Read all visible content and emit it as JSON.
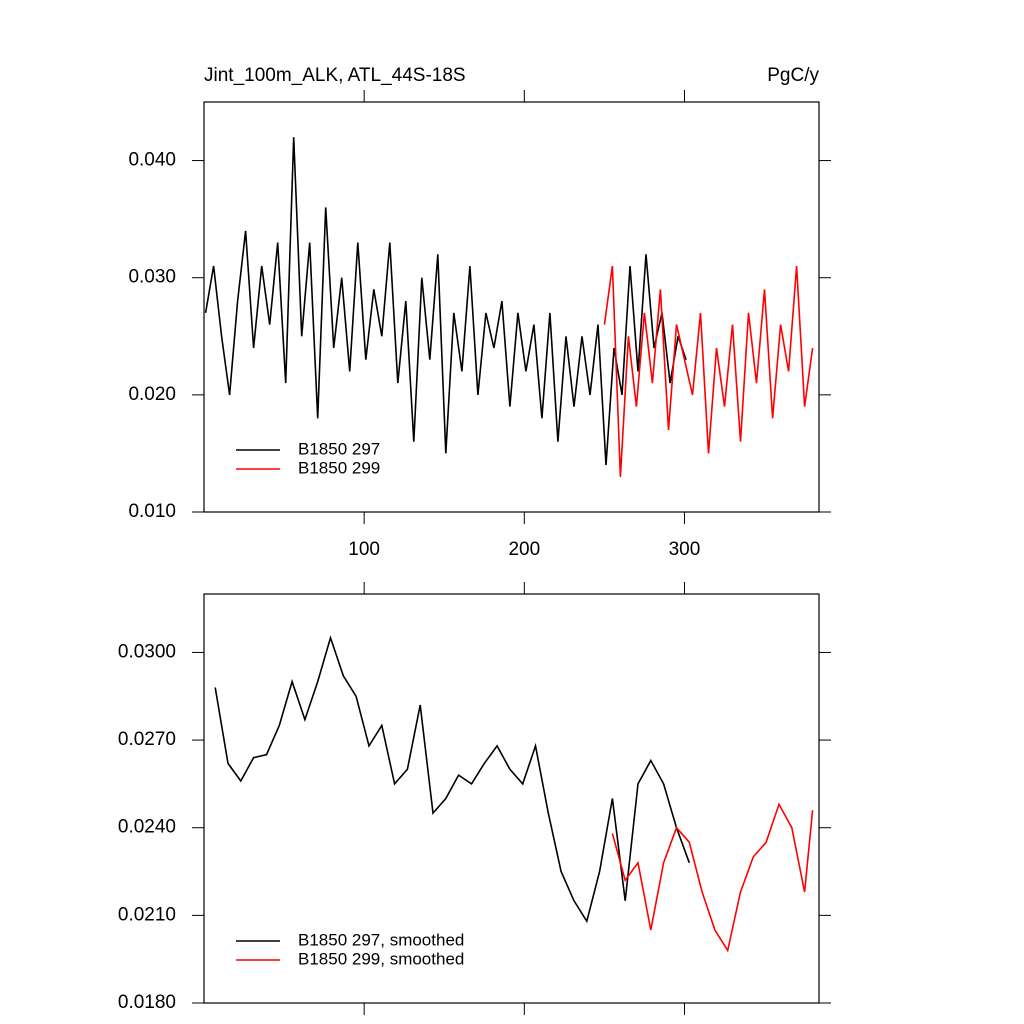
{
  "chart_data": [
    {
      "type": "line",
      "title": "Jint_100m_ALK, ATL_44S-18S",
      "subtitle": "PgC/y",
      "xlim": [
        0,
        384
      ],
      "xticks": [
        100,
        200,
        300
      ],
      "xtick_labels": true,
      "ylim": [
        0.01,
        0.045
      ],
      "yticks": [
        {
          "value": 0.01,
          "label": "0.010"
        },
        {
          "value": 0.02,
          "label": "0.020"
        },
        {
          "value": 0.03,
          "label": "0.030"
        },
        {
          "value": 0.04,
          "label": "0.040"
        }
      ],
      "legend": "lower left",
      "series": [
        {
          "name": "B1850 297",
          "color": "#000000",
          "x": [
            1,
            6,
            11,
            16,
            21,
            26,
            31,
            36,
            41,
            46,
            51,
            56,
            61,
            66,
            71,
            76,
            81,
            86,
            91,
            96,
            101,
            106,
            111,
            116,
            121,
            126,
            131,
            136,
            141,
            146,
            151,
            156,
            161,
            166,
            171,
            176,
            181,
            186,
            191,
            196,
            201,
            206,
            211,
            216,
            221,
            226,
            231,
            236,
            241,
            246,
            251,
            256,
            261,
            266,
            271,
            276,
            281,
            286,
            291,
            296,
            301
          ],
          "values": [
            0.027,
            0.031,
            0.025,
            0.02,
            0.028,
            0.034,
            0.024,
            0.031,
            0.026,
            0.033,
            0.021,
            0.042,
            0.025,
            0.033,
            0.018,
            0.036,
            0.024,
            0.03,
            0.022,
            0.033,
            0.023,
            0.029,
            0.025,
            0.033,
            0.021,
            0.028,
            0.016,
            0.03,
            0.023,
            0.032,
            0.015,
            0.027,
            0.022,
            0.031,
            0.02,
            0.027,
            0.024,
            0.028,
            0.019,
            0.027,
            0.022,
            0.026,
            0.018,
            0.027,
            0.016,
            0.025,
            0.019,
            0.025,
            0.02,
            0.026,
            0.014,
            0.024,
            0.02,
            0.031,
            0.022,
            0.032,
            0.024,
            0.027,
            0.021,
            0.025,
            0.023
          ]
        },
        {
          "name": "B1850 299",
          "color": "#ff0000",
          "x": [
            250,
            255,
            260,
            265,
            270,
            275,
            280,
            285,
            290,
            295,
            300,
            305,
            310,
            315,
            320,
            325,
            330,
            335,
            340,
            345,
            350,
            355,
            360,
            365,
            370,
            375,
            380
          ],
          "values": [
            0.026,
            0.031,
            0.013,
            0.025,
            0.019,
            0.027,
            0.021,
            0.029,
            0.017,
            0.026,
            0.023,
            0.02,
            0.027,
            0.015,
            0.024,
            0.019,
            0.026,
            0.016,
            0.027,
            0.021,
            0.029,
            0.018,
            0.026,
            0.022,
            0.031,
            0.019,
            0.024
          ]
        }
      ]
    },
    {
      "type": "line",
      "xlim": [
        0,
        384
      ],
      "xticks": [
        100,
        200,
        300
      ],
      "xtick_labels": false,
      "ylim": [
        0.018,
        0.032
      ],
      "yticks": [
        {
          "value": 0.018,
          "label": "0.0180"
        },
        {
          "value": 0.021,
          "label": "0.0210"
        },
        {
          "value": 0.024,
          "label": "0.0240"
        },
        {
          "value": 0.027,
          "label": "0.0270"
        },
        {
          "value": 0.03,
          "label": "0.0300"
        }
      ],
      "legend": "lower left",
      "series": [
        {
          "name": "B1850 297, smoothed",
          "color": "#000000",
          "x": [
            7,
            15,
            23,
            31,
            39,
            47,
            55,
            63,
            71,
            79,
            87,
            95,
            103,
            111,
            119,
            127,
            135,
            143,
            151,
            159,
            167,
            175,
            183,
            191,
            199,
            207,
            215,
            223,
            231,
            239,
            247,
            255,
            263,
            271,
            279,
            287,
            295,
            303
          ],
          "values": [
            0.0288,
            0.0262,
            0.0256,
            0.0264,
            0.0265,
            0.0275,
            0.029,
            0.0277,
            0.029,
            0.0305,
            0.0292,
            0.0285,
            0.0268,
            0.0275,
            0.0255,
            0.026,
            0.0282,
            0.0245,
            0.025,
            0.0258,
            0.0255,
            0.0262,
            0.0268,
            0.026,
            0.0255,
            0.0268,
            0.0245,
            0.0225,
            0.0215,
            0.0208,
            0.0225,
            0.025,
            0.0215,
            0.0255,
            0.0263,
            0.0255,
            0.024,
            0.0228
          ]
        },
        {
          "name": "B1850 299, smoothed",
          "color": "#ff0000",
          "x": [
            255,
            263,
            271,
            279,
            287,
            295,
            303,
            311,
            319,
            327,
            335,
            343,
            351,
            359,
            367,
            375,
            380
          ],
          "values": [
            0.0238,
            0.0222,
            0.0228,
            0.0205,
            0.0228,
            0.024,
            0.0235,
            0.0218,
            0.0205,
            0.0198,
            0.0218,
            0.023,
            0.0235,
            0.0248,
            0.024,
            0.0218,
            0.0246
          ]
        }
      ]
    }
  ]
}
